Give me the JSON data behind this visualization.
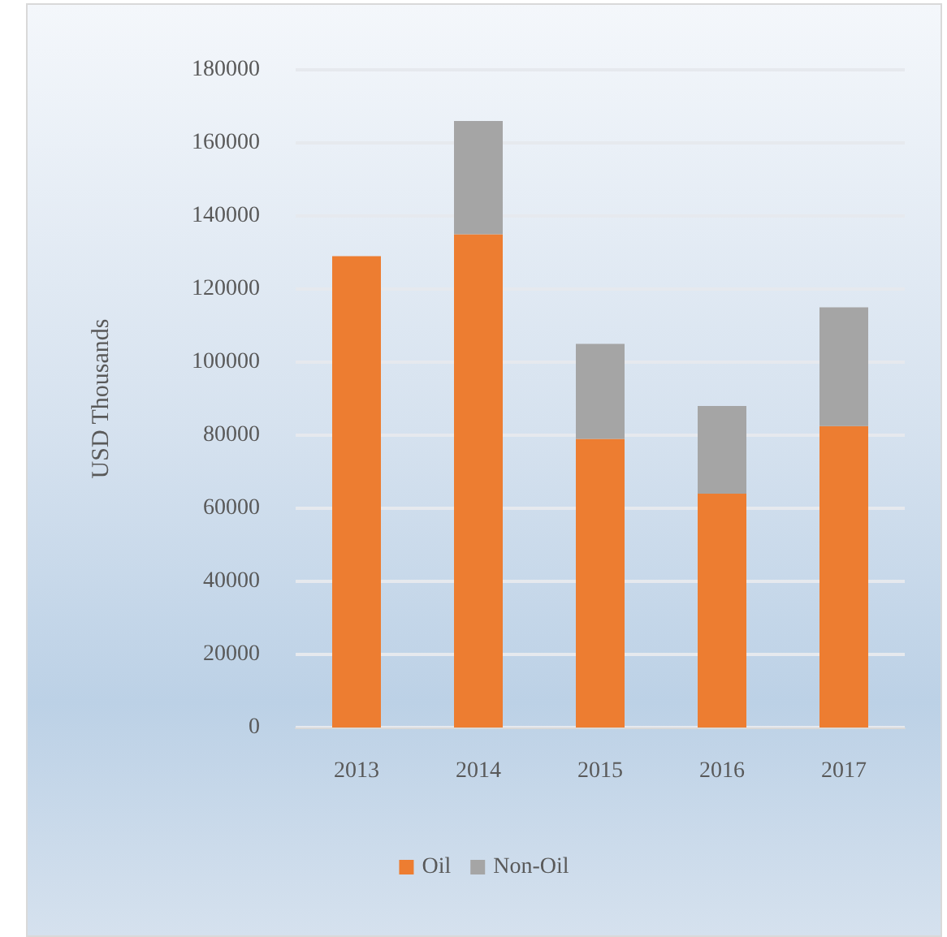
{
  "chart_data": {
    "type": "bar",
    "ylabel": "USD Thousands",
    "categories": [
      "2013",
      "2014",
      "2015",
      "2016",
      "2017"
    ],
    "stacked": true,
    "series": [
      {
        "name": "Oil",
        "color": "#ed7d31",
        "values": [
          129000,
          135000,
          79000,
          64000,
          82500
        ]
      },
      {
        "name": "Non-Oil",
        "color": "#a5a5a5",
        "values": [
          0,
          31000,
          26000,
          24000,
          32500
        ]
      }
    ],
    "ylim": [
      0,
      180000
    ],
    "yticks": [
      0,
      20000,
      40000,
      60000,
      80000,
      100000,
      120000,
      140000,
      160000,
      180000
    ],
    "grid": "y",
    "legend": "bottom"
  }
}
